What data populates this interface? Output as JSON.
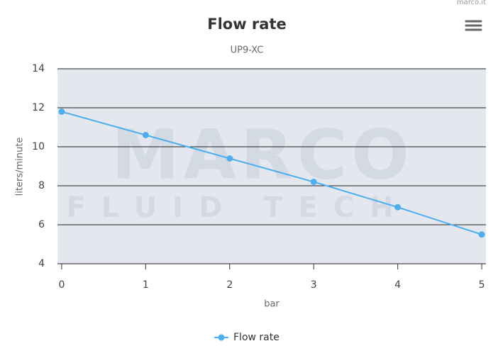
{
  "chart_data": {
    "type": "line",
    "title": "Flow rate",
    "subtitle": "UP9-XC",
    "credits": "marco.it",
    "watermark": [
      "MARCO",
      "FLUID TECH"
    ],
    "x_label": "bar",
    "y_label": "liters/minute",
    "x": [
      0,
      1,
      2,
      3,
      4,
      5
    ],
    "series": [
      {
        "name": "Flow rate",
        "color": "#4eaef0",
        "values": [
          11.8,
          10.6,
          9.4,
          8.2,
          6.9,
          5.5
        ]
      }
    ],
    "xlim": [
      -0.05,
      5.05
    ],
    "xticks": [
      0,
      1,
      2,
      3,
      4,
      5
    ],
    "ylim": [
      4,
      14
    ],
    "yticks": [
      4,
      6,
      8,
      10,
      12,
      14
    ],
    "grid": true,
    "legend": "bottom"
  }
}
